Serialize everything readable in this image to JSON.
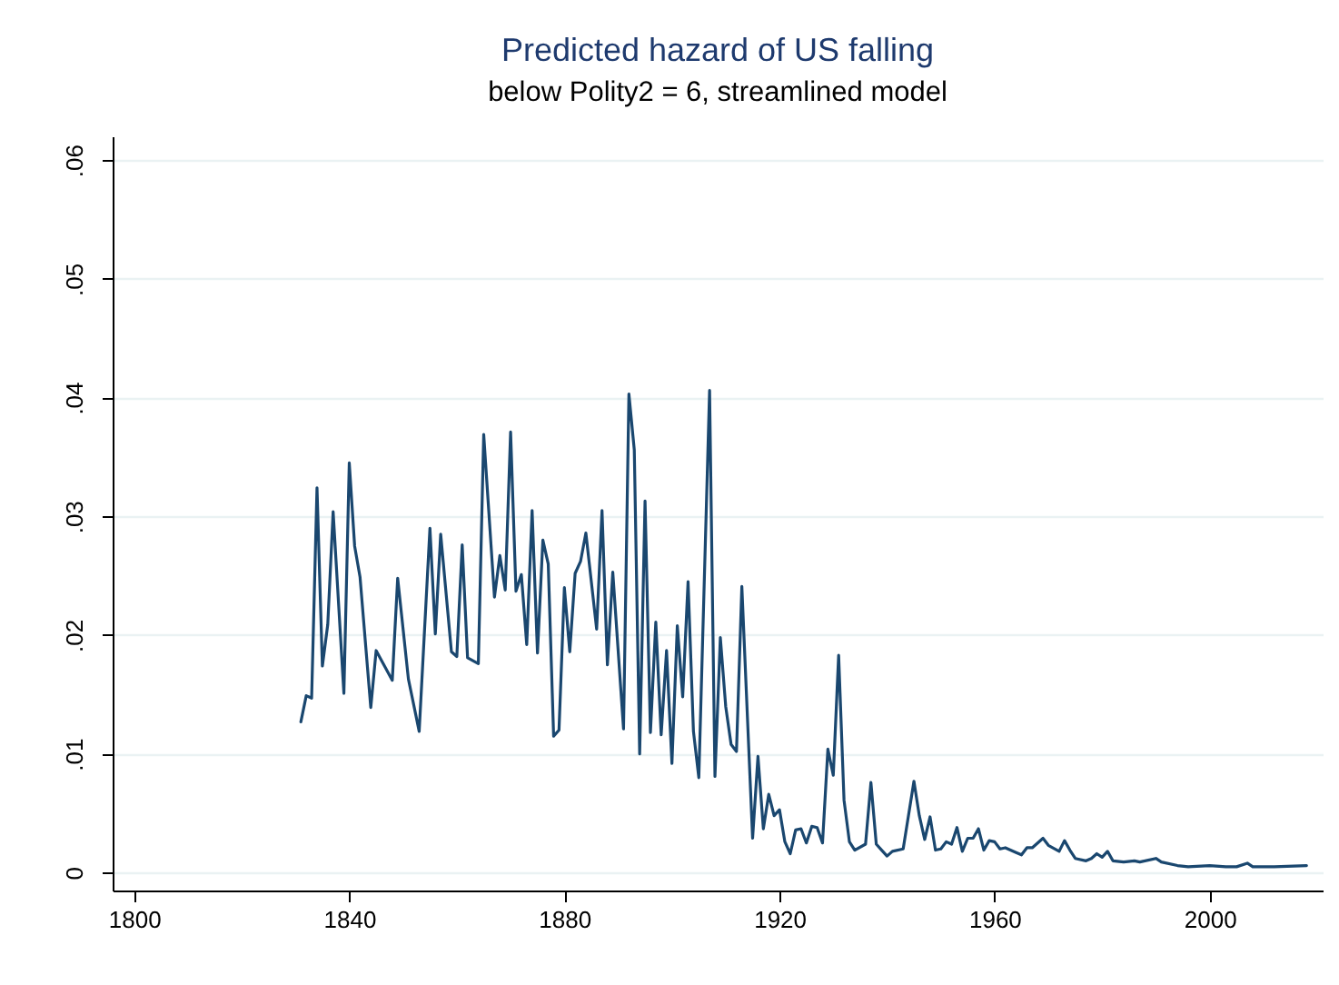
{
  "chart_data": {
    "type": "line",
    "title": "Predicted hazard of US falling",
    "subtitle": "below Polity2 = 6, streamlined model",
    "x": [
      1831,
      1832,
      1833,
      1834,
      1835,
      1836,
      1837,
      1839,
      1840,
      1841,
      1842,
      1844,
      1845,
      1848,
      1849,
      1851,
      1853,
      1855,
      1856,
      1857,
      1859,
      1860,
      1861,
      1862,
      1864,
      1865,
      1867,
      1868,
      1869,
      1870,
      1871,
      1872,
      1873,
      1874,
      1875,
      1876,
      1877,
      1878,
      1879,
      1880,
      1881,
      1882,
      1883,
      1884,
      1886,
      1887,
      1888,
      1889,
      1891,
      1892,
      1893,
      1894,
      1895,
      1896,
      1897,
      1898,
      1899,
      1900,
      1901,
      1902,
      1903,
      1904,
      1905,
      1907,
      1908,
      1909,
      1910,
      1911,
      1912,
      1913,
      1915,
      1916,
      1917,
      1918,
      1919,
      1920,
      1921,
      1922,
      1923,
      1924,
      1925,
      1926,
      1927,
      1928,
      1929,
      1930,
      1931,
      1932,
      1933,
      1934,
      1936,
      1937,
      1938,
      1939,
      1940,
      1941,
      1943,
      1945,
      1946,
      1947,
      1948,
      1949,
      1950,
      1951,
      1952,
      1953,
      1954,
      1955,
      1956,
      1957,
      1958,
      1959,
      1960,
      1961,
      1962,
      1964,
      1965,
      1966,
      1967,
      1969,
      1970,
      1972,
      1973,
      1974,
      1975,
      1977,
      1978,
      1979,
      1980,
      1981,
      1982,
      1984,
      1986,
      1987,
      1990,
      1991,
      1994,
      1996,
      2000,
      2003,
      2005,
      2007,
      2008,
      2012,
      2018
    ],
    "series": [
      {
        "color": "#1a476f",
        "values": [
          0.0127,
          0.0149,
          0.0147,
          0.0324,
          0.0174,
          0.0209,
          0.0304,
          0.0151,
          0.0345,
          0.0275,
          0.0249,
          0.0139,
          0.0187,
          0.0162,
          0.0248,
          0.0163,
          0.0119,
          0.029,
          0.0201,
          0.0285,
          0.0186,
          0.0182,
          0.0276,
          0.0181,
          0.0176,
          0.0369,
          0.0232,
          0.0267,
          0.0238,
          0.0371,
          0.0237,
          0.0251,
          0.0192,
          0.0305,
          0.0185,
          0.028,
          0.026,
          0.0115,
          0.012,
          0.024,
          0.0186,
          0.0252,
          0.0262,
          0.0286,
          0.0205,
          0.0305,
          0.0175,
          0.0253,
          0.0121,
          0.0403,
          0.0356,
          0.01,
          0.0313,
          0.0118,
          0.0211,
          0.0116,
          0.0187,
          0.0092,
          0.0208,
          0.0148,
          0.0245,
          0.0119,
          0.008,
          0.0406,
          0.0081,
          0.0198,
          0.014,
          0.0108,
          0.0102,
          0.0241,
          0.0029,
          0.0098,
          0.0037,
          0.0066,
          0.0048,
          0.0053,
          0.0026,
          0.0016,
          0.0036,
          0.0037,
          0.0025,
          0.0039,
          0.0038,
          0.0025,
          0.0104,
          0.0082,
          0.0183,
          0.0061,
          0.0026,
          0.0019,
          0.0024,
          0.0076,
          0.0024,
          0.0019,
          0.0014,
          0.0018,
          0.002,
          0.0077,
          0.0048,
          0.0028,
          0.0047,
          0.0019,
          0.002,
          0.0026,
          0.0024,
          0.0038,
          0.0018,
          0.0029,
          0.0029,
          0.0037,
          0.0019,
          0.0027,
          0.0026,
          0.002,
          0.0021,
          0.0017,
          0.0015,
          0.0021,
          0.0021,
          0.0029,
          0.0023,
          0.0018,
          0.0027,
          0.0019,
          0.0012,
          0.001,
          0.0012,
          0.0016,
          0.0013,
          0.0018,
          0.001,
          0.0009,
          0.001,
          0.0009,
          0.0012,
          0.0009,
          0.0006,
          0.0005,
          0.0006,
          0.0005,
          0.0005,
          0.0008,
          0.0005,
          0.0005,
          0.0006
        ]
      }
    ],
    "xlim": [
      1796,
      2021
    ],
    "xticks": [
      1800,
      1840,
      1880,
      1920,
      1960,
      2000
    ],
    "ylim": [
      -0.0015,
      0.062
    ],
    "yticks": [
      {
        "value": 0,
        "label": "0"
      },
      {
        "value": 0.01,
        "label": ".01"
      },
      {
        "value": 0.02,
        "label": ".02"
      },
      {
        "value": 0.03,
        "label": ".03"
      },
      {
        "value": 0.04,
        "label": ".04"
      },
      {
        "value": 0.05,
        "label": ".05"
      },
      {
        "value": 0.06,
        "label": ".06"
      }
    ],
    "grid": "y",
    "marker": "none",
    "line_style": "solid"
  }
}
